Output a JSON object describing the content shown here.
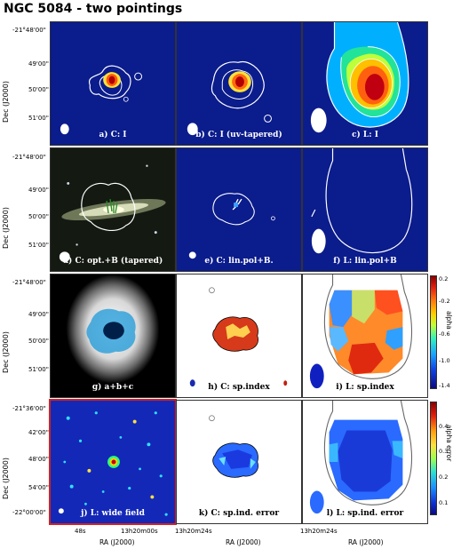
{
  "title": "NGC 5084 - two pointings",
  "ylabel": "Dec (J2000)",
  "xlabel": "RA (J2000)",
  "dec_ticks_small": [
    "-21°48'00\"",
    "49'00\"",
    "50'00\"",
    "51'00\""
  ],
  "dec_ticks_wide": [
    "-21°36'00\"",
    "42'00\"",
    "48'00\"",
    "54'00\"",
    "-22°00'00\""
  ],
  "ra_ticks": {
    "col1": [
      "48s",
      "13h20m00s"
    ],
    "col2": [
      "13h20m24s"
    ],
    "col3": [
      "13h20m24s"
    ]
  },
  "panels": {
    "a": "a) C: I",
    "b": "b) C: I (uv-tapered)",
    "c": "c) L: I",
    "d": "d) C: opt.+B (tapered)",
    "e": "e) C: lin.pol+B.",
    "f": "f) L: lin.pol+B",
    "g": "g) a+b+c",
    "h": "h) C: sp.index",
    "i": "i) L: sp.index",
    "j": "j) L: wide field",
    "k": "k) C: sp.ind. error",
    "l": "l) L: sp.ind. error"
  },
  "colorbar_alpha": {
    "label": "alpha",
    "ticks": [
      "0.2",
      "-0.2",
      "-0.6",
      "-1.0",
      "-1.4"
    ]
  },
  "colorbar_error": {
    "label": "alpha error",
    "ticks": [
      "0.4",
      "0.3",
      "0.2",
      "0.1"
    ]
  }
}
